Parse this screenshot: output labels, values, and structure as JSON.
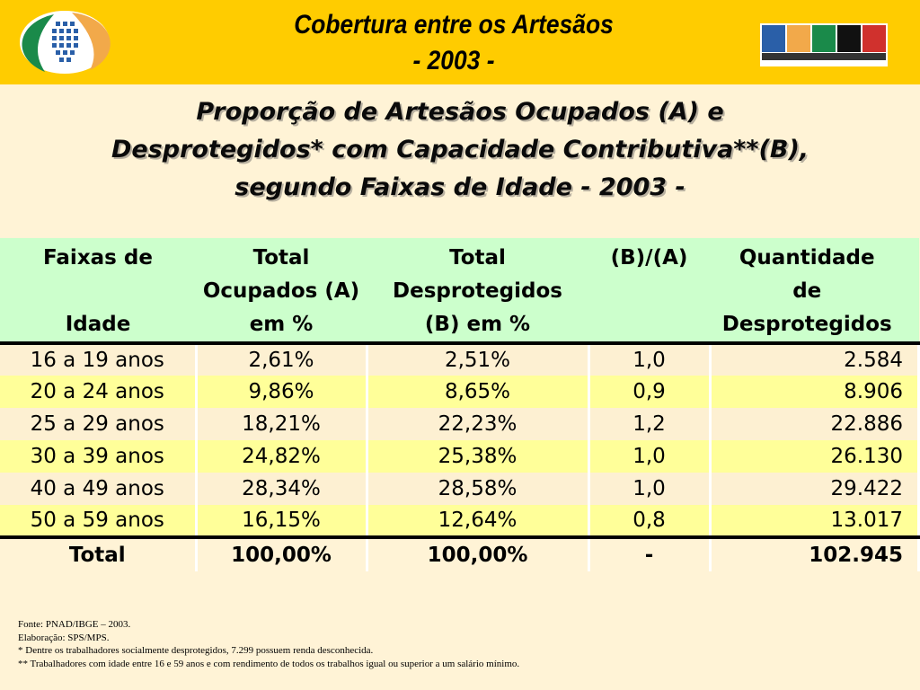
{
  "header": {
    "title_line1": "Cobertura entre os Artesãos",
    "title_line2": "- 2003 -",
    "logo_right_text": "BRASIL",
    "logo_right_tagline": "UM PAÍS DE TODOS",
    "logo_right_sub": "GOVERNO FEDERAL"
  },
  "subtitle": {
    "line1": "Proporção de Artesãos Ocupados (A) e",
    "line2": "Desprotegidos* com Capacidade Contributiva**(B),",
    "line3": "segundo Faixas de Idade - 2003 -"
  },
  "table": {
    "headers": [
      [
        "Faixas de",
        "",
        "Idade"
      ],
      [
        "Total",
        "Ocupados (A)",
        "em %"
      ],
      [
        "Total",
        "Desprotegidos",
        "(B) em %"
      ],
      [
        "(B)/(A)",
        "",
        ""
      ],
      [
        "Quantidade",
        "de",
        "Desprotegidos"
      ]
    ],
    "rows": [
      [
        "16 a 19 anos",
        "2,61%",
        "2,51%",
        "1,0",
        "2.584"
      ],
      [
        "20 a 24 anos",
        "9,86%",
        "8,65%",
        "0,9",
        "8.906"
      ],
      [
        "25 a 29 anos",
        "18,21%",
        "22,23%",
        "1,2",
        "22.886"
      ],
      [
        "30 a 39 anos",
        "24,82%",
        "25,38%",
        "1,0",
        "26.130"
      ],
      [
        "40 a 49 anos",
        "28,34%",
        "28,58%",
        "1,0",
        "29.422"
      ],
      [
        "50 a 59 anos",
        "16,15%",
        "12,64%",
        "0,8",
        "13.017"
      ]
    ],
    "total": [
      "Total",
      "100,00%",
      "100,00%",
      "-",
      "102.945"
    ]
  },
  "footnotes": [
    "Fonte: PNAD/IBGE – 2003.",
    "Elaboração: SPS/MPS.",
    "* Dentre os trabalhadores socialmente desprotegidos, 7.299 possuem renda desconhecida.",
    "** Trabalhadores com idade entre 16 e 59 anos e com rendimento de todos os trabalhos igual ou superior a um salário mínimo."
  ]
}
